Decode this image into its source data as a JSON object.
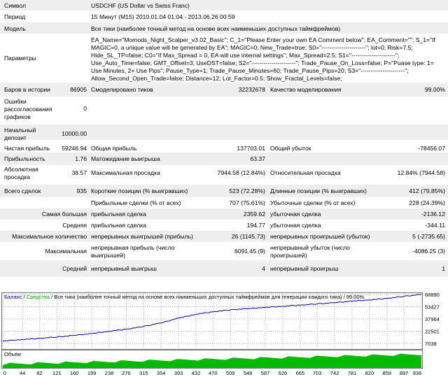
{
  "header": {
    "symbol_label": "Символ",
    "symbol_value": "USDCHF (US Dollar vs Swiss Franc)",
    "period_label": "Период",
    "period_value": "15 Минут (M15) 2010.01.04 01:04 - 2013.06.26 00:59",
    "model_label": "Модель",
    "model_value": "Все тики (наиболее точный метод на основе всех наименьших доступных таймфреймов)",
    "params_label": "Параметры",
    "params_value": "EA_Name=\"Momods_Night_Scalper_v3.02_Basic\"; C_1=\"Please Enter your own EA Comment below\"; EA_Comment=\"\"; S_1=\"If MAGIC=0, a unique value will be generated by EA\"; MAGIC=0; New_Trade=true; S0=\"----------------------\"; lot=0; Risk=7.5; Hide_SL_TP=false; C0=\"If Max_Spread = 0, EA will use internal settings\"; Max_Spread=2.5; S1=\"----------------------\"; Use_Auto_Time=false; GMT_Offset=3; UseDST=false; S2=\"----------------------\"; Trade_Pause_On_Loss=false; P=\"Puase type: 1= Use Minutes, 2= Use Pips\"; Pause_Type=1; Trade_Pause_Minutes=60; Trade_Pause_Pips=20; S3=\"----------------------\"; Allow_Second_Open_Trade=false; Distance=12; Lot_Factor=0.5; Show_Fractal_Levels=false;"
  },
  "stats": {
    "bars_label": "Баров в истории",
    "bars_value": "86905",
    "ticks_label": "Смоделировано тиков",
    "ticks_value": "32232678",
    "quality_label": "Качество моделирования",
    "quality_value": "99.00%",
    "errors_label": "Ошибки рассогласования графиков",
    "errors_value": "0",
    "deposit_label": "Начальный депозит",
    "deposit_value": "10000.00",
    "net_label": "Чистая прибыль",
    "net_value": "59246.94",
    "gross_profit_label": "Общая прибыль",
    "gross_profit_value": "137703.01",
    "gross_loss_label": "Общий убыток",
    "gross_loss_value": "-78456.07",
    "pf_label": "Прибыльность",
    "pf_value": "1.76",
    "expect_label": "Матожидание выигрыша",
    "expect_value": "63.37",
    "abs_dd_label": "Абсолютная просадка",
    "abs_dd_value": "38.57",
    "max_dd_label": "Максимальная просадка",
    "max_dd_value": "7944.58 (12.84%)",
    "rel_dd_label": "Относительная просадка",
    "rel_dd_value": "12.84% (7944.58)",
    "total_label": "Всего сделок",
    "total_value": "935",
    "short_label": "Короткие позиции (% выигравших)",
    "short_value": "523 (72.28%)",
    "long_label": "Длинные позиции (% выигравших)",
    "long_value": "412 (79.85%)",
    "profit_trades_label": "Прибыльные сделки (% от всех)",
    "profit_trades_value": "707 (75.61%)",
    "loss_trades_label": "Убыточные сделки (% от всех)",
    "loss_trades_value": "228 (24.39%)",
    "largest_label": "Самая большая",
    "largest_profit_label": "прибыльная сделка",
    "largest_profit_value": "2359.62",
    "largest_loss_label": "убыточная сделка",
    "largest_loss_value": "-2136.12",
    "average_label": "Средняя",
    "avg_profit_label": "прибыльная сделка",
    "avg_profit_value": "194.77",
    "avg_loss_label": "убыточная сделка",
    "avg_loss_value": "-344.11",
    "max_count_label": "Максимальное количество",
    "max_consec_wins_label": "непрерывных выигрышей (прибыль)",
    "max_consec_wins_value": "26 (1145.73)",
    "max_consec_losses_label": "непрерывных проигрышей (убыток)",
    "max_consec_losses_value": "5 (-2735.65)",
    "maximal_label": "Максимальная",
    "max_consec_profit_label": "непрерывная прибыль (число выигрышей)",
    "max_consec_profit_value": "6091.45 (9)",
    "max_consec_loss_label": "непрерывный убыток (число проигрышей)",
    "max_consec_loss_value": "-4086.25 (3)",
    "avg2_label": "Средний",
    "avg_consec_wins_label": "непрерывный выигрыш",
    "avg_consec_wins_value": "4",
    "avg_consec_losses_label": "непрерывный проигрыш",
    "avg_consec_losses_value": "1"
  },
  "chart": {
    "legend_balance": "Баланс",
    "legend_sep1": " / ",
    "legend_equity": "Средства",
    "legend_rest": " / Все тики (наиболее точный метод на основе всех наименьших доступных таймфреймов для генерации каждого тика) / 99.00%",
    "volume_label": "Объём",
    "colors": {
      "balance": "#0000aa",
      "equity": "#00aa00",
      "volume": "#00bb00",
      "grid": "#aaaaaa"
    }
  },
  "chart_data": {
    "type": "line",
    "ylim": [
      0,
      68890
    ],
    "y_ticks": [
      7038,
      22501,
      37964,
      53427,
      68890
    ],
    "x_ticks": [
      0,
      44,
      82,
      121,
      160,
      199,
      238,
      276,
      315,
      354,
      393,
      432,
      470,
      509,
      548,
      587,
      626,
      665,
      703,
      742,
      781,
      820,
      859,
      897,
      936
    ],
    "series": [
      {
        "name": "Баланс",
        "x": [
          0,
          44,
          82,
          121,
          160,
          199,
          238,
          276,
          315,
          354,
          393,
          432,
          470,
          509,
          548,
          587,
          626,
          665,
          703,
          742,
          781,
          820,
          859,
          897,
          936
        ],
        "values": [
          10000,
          12000,
          13500,
          15200,
          17200,
          19500,
          22500,
          25000,
          28500,
          33000,
          39000,
          44000,
          47000,
          49500,
          51000,
          52500,
          54000,
          55500,
          57000,
          58500,
          60500,
          62000,
          64000,
          66500,
          69000
        ]
      }
    ]
  }
}
